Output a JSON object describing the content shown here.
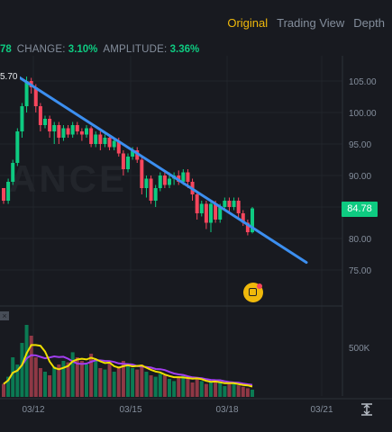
{
  "tabs": [
    {
      "label": "Original",
      "active": true
    },
    {
      "label": "Trading View",
      "active": false
    },
    {
      "label": "Depth",
      "active": false
    }
  ],
  "info": {
    "price_fragment": "78",
    "change_label": "CHANGE:",
    "change_value": "3.10%",
    "amplitude_label": "AMPLITUDE:",
    "amplitude_value": "3.36%"
  },
  "high_label": "5.70",
  "current_price": "84.78",
  "watermark": "ANCE",
  "colors": {
    "up": "#0ecb81",
    "down": "#f6465d",
    "trendline": "#3c8ff0",
    "accent": "#f0b90b",
    "ma1": "#f0e000",
    "ma2": "#a33ef0"
  },
  "icons": [
    "cursor-tool-icon",
    "collapse-icon",
    "scale-icon"
  ],
  "chart_data": {
    "type": "candlestick",
    "y_ticks": [
      "105.00",
      "100.00",
      "95.00",
      "90.00",
      "85.00",
      "80.00",
      "75.00"
    ],
    "y_range": [
      72.5,
      107.5
    ],
    "x_ticks": [
      "03/12",
      "03/15",
      "03/18",
      "03/21"
    ],
    "volume_tick": "500K",
    "trendline": {
      "start": 105.7,
      "end": 76.2
    },
    "candles": [
      [
        88.0,
        86.0,
        86.5,
        85.5
      ],
      [
        86.0,
        89.0,
        89.5,
        85.5
      ],
      [
        89.0,
        92.0,
        92.5,
        88.5
      ],
      [
        92.0,
        97.0,
        97.5,
        91.5
      ],
      [
        97.0,
        101.0,
        101.5,
        96.0
      ],
      [
        101.0,
        105.0,
        105.7,
        100.0
      ],
      [
        105.0,
        104.0,
        105.5,
        103.0
      ],
      [
        104.0,
        101.0,
        104.5,
        100.0
      ],
      [
        101.0,
        98.0,
        101.5,
        97.0
      ],
      [
        98.0,
        99.0,
        99.5,
        97.5
      ],
      [
        99.0,
        97.0,
        99.5,
        96.0
      ],
      [
        97.0,
        98.0,
        98.5,
        95.0
      ],
      [
        98.0,
        96.0,
        98.5,
        95.0
      ],
      [
        96.0,
        97.5,
        98.0,
        95.5
      ],
      [
        97.5,
        96.5,
        98.0,
        96.0
      ],
      [
        96.5,
        98.0,
        98.5,
        96.0
      ],
      [
        98.0,
        97.0,
        98.5,
        96.5
      ],
      [
        97.0,
        96.5,
        97.5,
        95.5
      ],
      [
        96.5,
        97.5,
        98.0,
        96.0
      ],
      [
        97.5,
        95.0,
        97.8,
        94.5
      ],
      [
        95.0,
        96.5,
        97.0,
        94.5
      ],
      [
        96.5,
        95.0,
        97.0,
        94.0
      ],
      [
        95.0,
        96.0,
        96.5,
        94.5
      ],
      [
        96.0,
        94.5,
        96.2,
        94.0
      ],
      [
        94.5,
        95.5,
        96.0,
        94.0
      ],
      [
        95.5,
        93.5,
        96.0,
        93.0
      ],
      [
        93.5,
        91.0,
        94.0,
        90.0
      ],
      [
        91.0,
        93.0,
        93.5,
        90.5
      ],
      [
        93.0,
        94.0,
        94.5,
        92.5
      ],
      [
        94.0,
        92.5,
        94.5,
        92.0
      ],
      [
        92.5,
        88.0,
        93.0,
        87.0
      ],
      [
        88.0,
        89.5,
        90.0,
        86.5
      ],
      [
        89.5,
        86.0,
        90.0,
        85.5
      ],
      [
        86.0,
        88.0,
        88.5,
        85.0
      ],
      [
        88.0,
        90.0,
        90.5,
        87.5
      ],
      [
        90.0,
        88.5,
        90.5,
        88.0
      ],
      [
        88.5,
        89.5,
        90.5,
        88.0
      ],
      [
        89.5,
        90.0,
        90.5,
        88.5
      ],
      [
        90.0,
        89.0,
        90.8,
        88.5
      ],
      [
        89.0,
        90.5,
        91.0,
        88.5
      ],
      [
        90.5,
        89.0,
        91.0,
        88.0
      ],
      [
        89.0,
        87.0,
        89.5,
        86.0
      ],
      [
        87.0,
        84.0,
        87.5,
        83.0
      ],
      [
        84.0,
        85.5,
        86.0,
        83.5
      ],
      [
        85.5,
        82.5,
        86.0,
        81.5
      ],
      [
        82.5,
        85.5,
        86.0,
        81.0
      ],
      [
        85.5,
        83.0,
        86.0,
        82.5
      ],
      [
        83.0,
        85.0,
        85.5,
        82.5
      ],
      [
        85.0,
        86.0,
        86.5,
        84.5
      ],
      [
        86.0,
        85.0,
        86.5,
        84.0
      ],
      [
        85.0,
        86.0,
        86.5,
        84.5
      ],
      [
        86.0,
        84.0,
        86.5,
        83.0
      ],
      [
        84.0,
        82.5,
        84.5,
        82.0
      ],
      [
        82.5,
        81.0,
        83.0,
        80.5
      ],
      [
        81.0,
        84.78,
        85.0,
        80.8
      ]
    ],
    "volumes": [
      0.18,
      0.28,
      0.55,
      0.45,
      0.75,
      1.0,
      0.85,
      0.55,
      0.4,
      0.35,
      0.3,
      0.42,
      0.45,
      0.5,
      0.48,
      0.62,
      0.55,
      0.5,
      0.45,
      0.6,
      0.52,
      0.4,
      0.38,
      0.48,
      0.35,
      0.42,
      0.5,
      0.45,
      0.4,
      0.38,
      0.45,
      0.35,
      0.3,
      0.28,
      0.32,
      0.3,
      0.25,
      0.22,
      0.28,
      0.3,
      0.26,
      0.2,
      0.25,
      0.22,
      0.18,
      0.2,
      0.22,
      0.2,
      0.15,
      0.18,
      0.2,
      0.16,
      0.14,
      0.12,
      0.1
    ]
  }
}
